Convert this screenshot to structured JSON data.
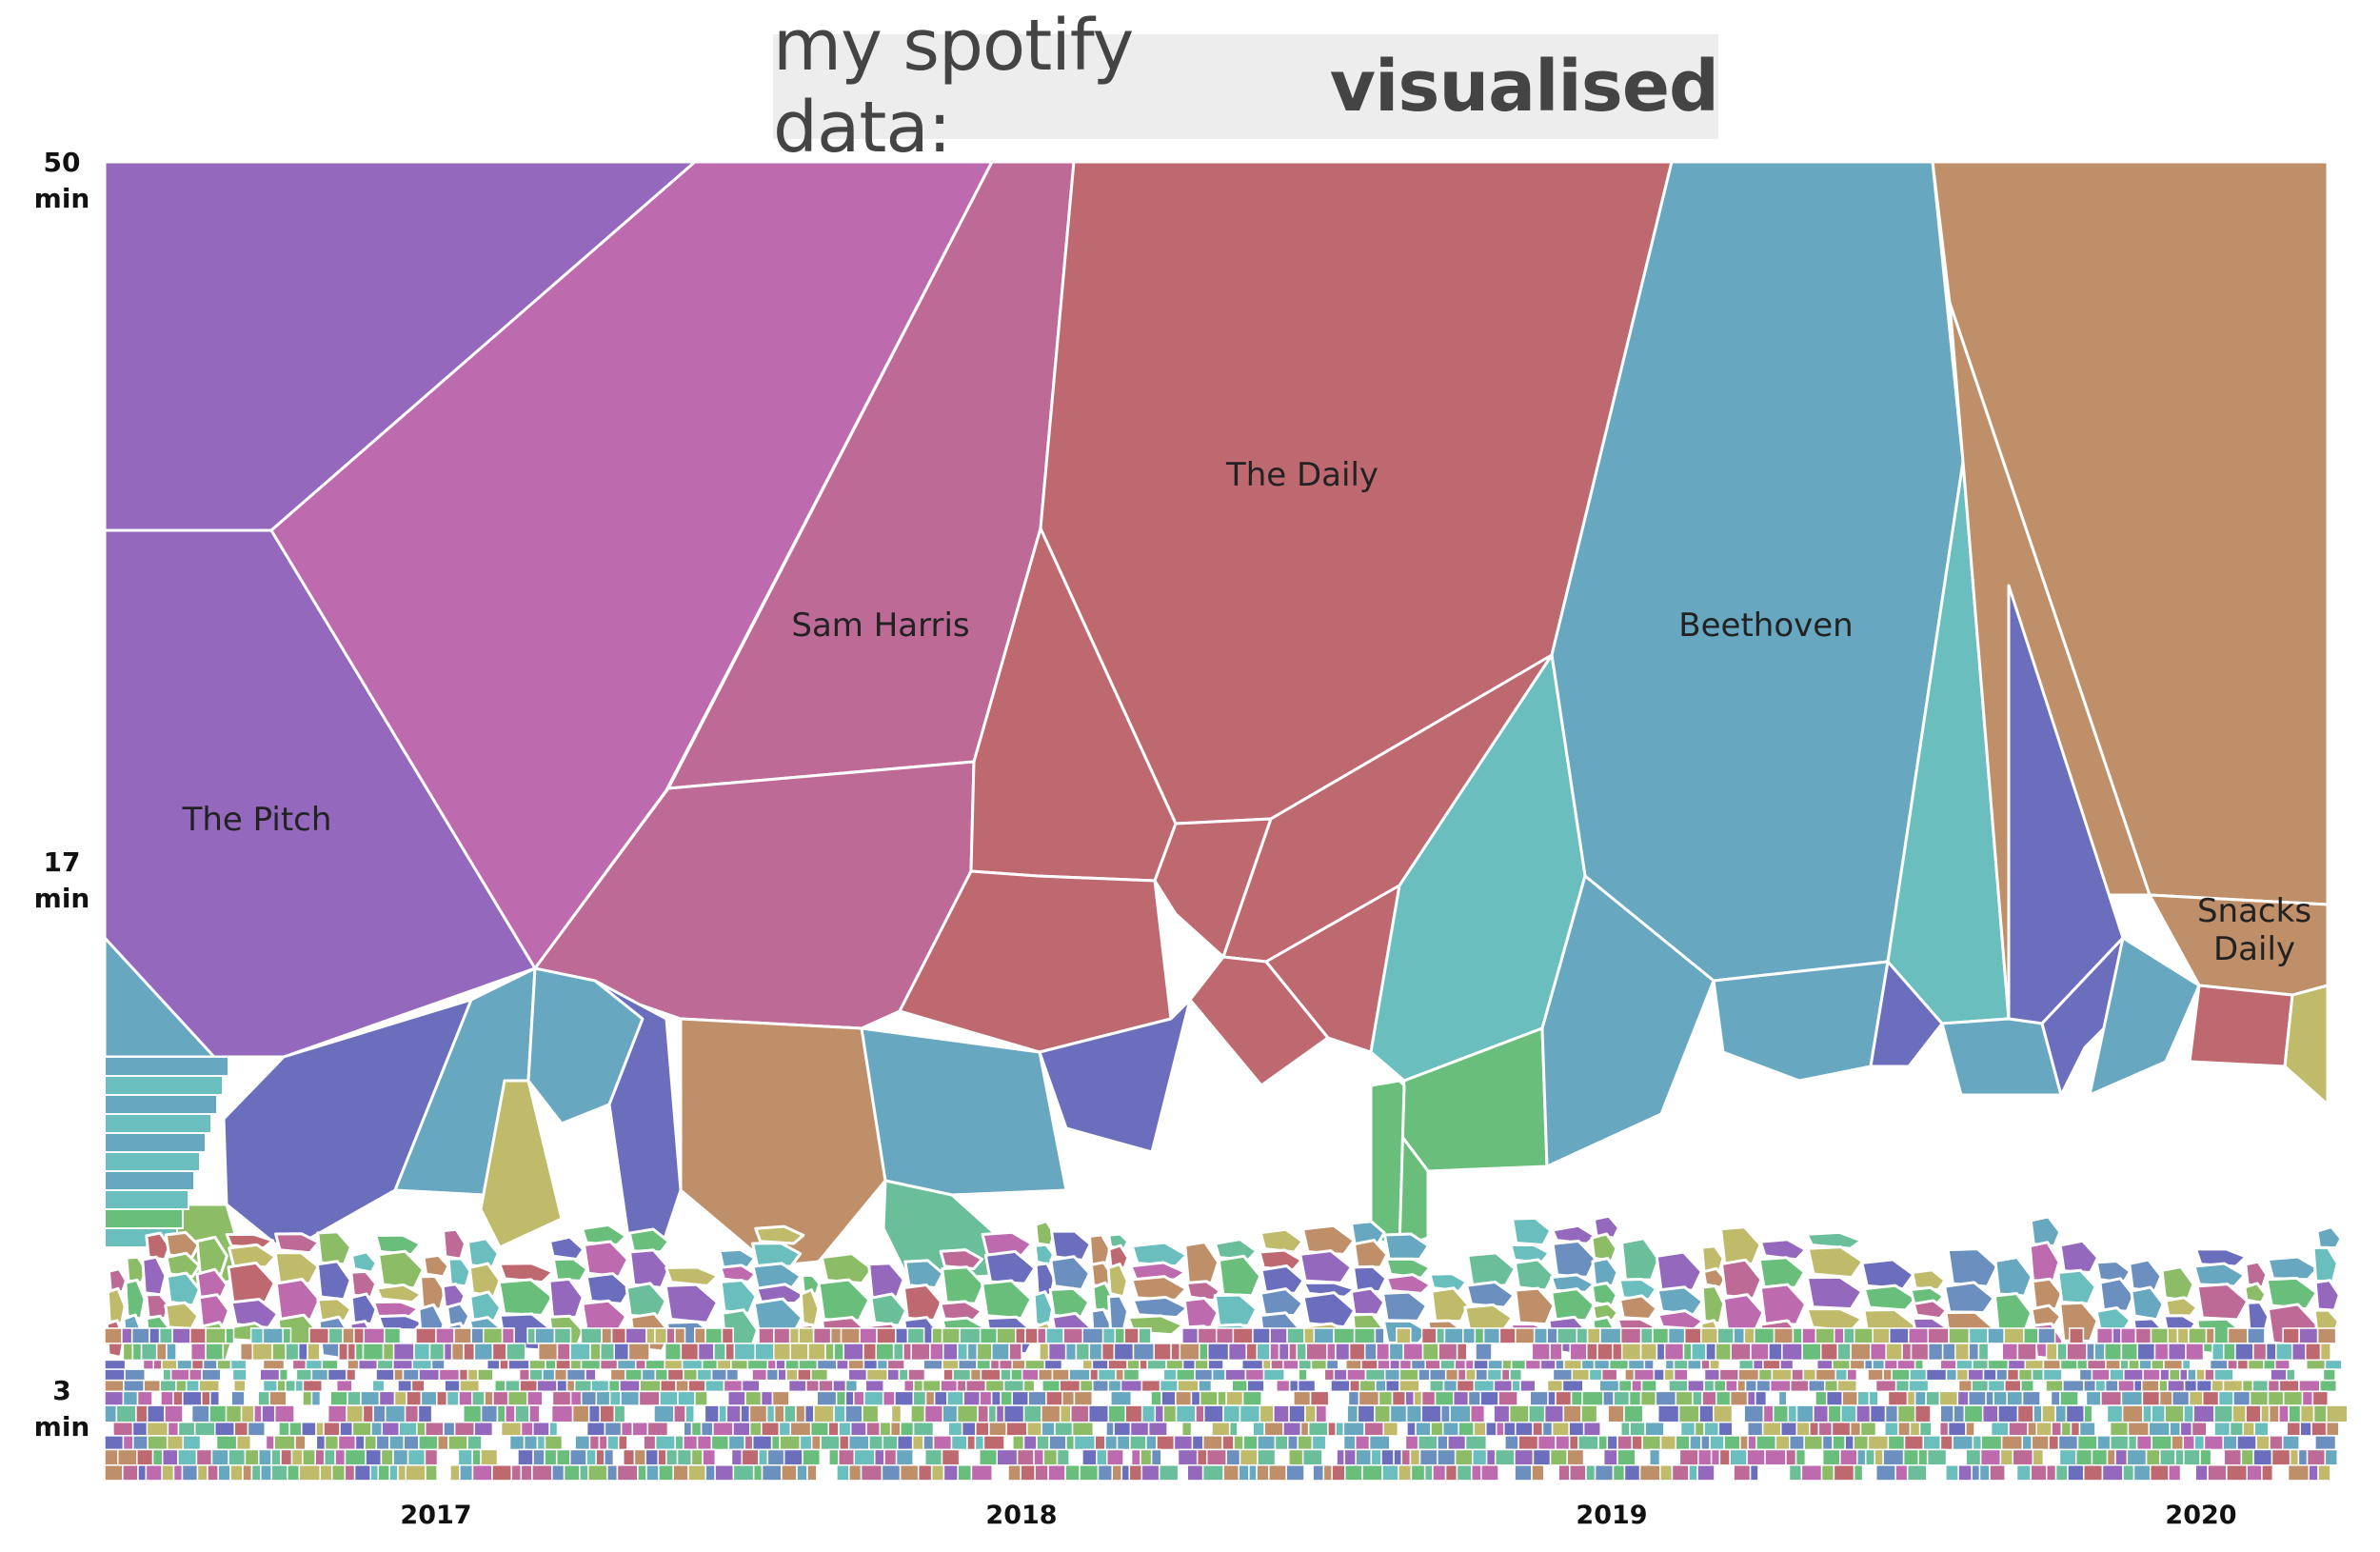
{
  "title": {
    "normal": "my spotify data:",
    "bold": "visualised"
  },
  "chart_data": {
    "type": "voronoi-treemap",
    "x_ticks": [
      "2017",
      "2018",
      "2019",
      "2020"
    ],
    "y_ticks": [
      {
        "value": "50",
        "unit": "min"
      },
      {
        "value": "17",
        "unit": "min"
      },
      {
        "value": "3",
        "unit": "min"
      }
    ],
    "labels": [
      {
        "text": [
          "The Pitch"
        ]
      },
      {
        "text": [
          "Sam Harris"
        ]
      },
      {
        "text": [
          "The Daily"
        ]
      },
      {
        "text": [
          "Beethoven"
        ]
      },
      {
        "text": [
          "Snacks",
          "Daily"
        ]
      }
    ],
    "colors": {
      "purple": "#9368bd",
      "magenta": "#bd6aae",
      "rose": "#bd6a97",
      "red": "#be6970",
      "steel": "#67a7c0",
      "tan": "#bf8f69",
      "teal": "#6abebe",
      "indigo": "#6a6ebd",
      "green": "#6abe7c",
      "olive": "#bfbb6b",
      "mint": "#6abf9a",
      "lime": "#8cbd66",
      "blue": "#6b8fbe"
    }
  }
}
